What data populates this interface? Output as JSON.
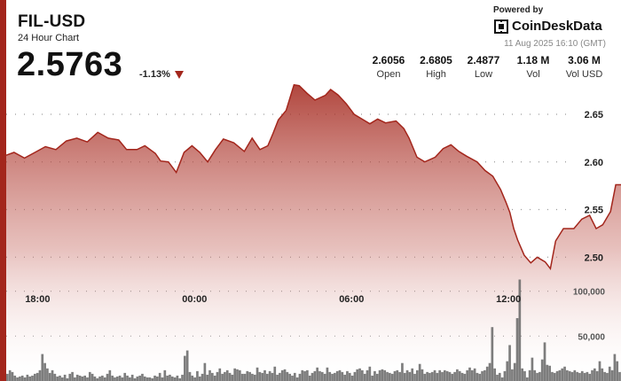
{
  "header": {
    "pair": "FIL-USD",
    "subtitle": "24 Hour Chart",
    "price": "2.5763",
    "change": "-1.13%",
    "change_icon": "down-triangle-icon"
  },
  "brand": {
    "powered_by": "Powered by",
    "name": "CoinDeskData",
    "icon": "coindesk-logo-icon",
    "timestamp": "11 Aug 2025 16:10 (GMT)"
  },
  "stats": [
    {
      "value": "2.6056",
      "label": "Open"
    },
    {
      "value": "2.6805",
      "label": "High"
    },
    {
      "value": "2.4877",
      "label": "Low"
    },
    {
      "value": "1.18 M",
      "label": "Vol"
    },
    {
      "value": "3.06 M",
      "label": "Vol USD"
    }
  ],
  "colors": {
    "accent": "#a3261c",
    "line": "#a3261c",
    "volume": "#666666"
  },
  "chart_data": {
    "type": "area",
    "title": "FIL-USD",
    "xlabel": "",
    "ylabel": "",
    "x_ticks": [
      "18:00",
      "00:00",
      "06:00",
      "12:00"
    ],
    "x_tick_hours": [
      3,
      9,
      15,
      21
    ],
    "y_ticks": [
      2.5,
      2.55,
      2.6,
      2.65
    ],
    "y_tick_labels": [
      "2.50",
      "2.55",
      "2.60",
      "2.65"
    ],
    "ylim": [
      2.37,
      2.77
    ],
    "xlim": [
      1.8,
      25.3
    ],
    "grid": "dotted-horizontal",
    "series": [
      {
        "values": [
          [
            1.8,
            2.607
          ],
          [
            2.1,
            2.61
          ],
          [
            2.5,
            2.604
          ],
          [
            2.9,
            2.61
          ],
          [
            3.3,
            2.616
          ],
          [
            3.7,
            2.613
          ],
          [
            4.1,
            2.622
          ],
          [
            4.5,
            2.625
          ],
          [
            4.9,
            2.621
          ],
          [
            5.3,
            2.631
          ],
          [
            5.7,
            2.625
          ],
          [
            6.1,
            2.623
          ],
          [
            6.4,
            2.613
          ],
          [
            6.8,
            2.613
          ],
          [
            7.1,
            2.617
          ],
          [
            7.5,
            2.609
          ],
          [
            7.7,
            2.601
          ],
          [
            8.0,
            2.6
          ],
          [
            8.3,
            2.589
          ],
          [
            8.6,
            2.61
          ],
          [
            8.9,
            2.617
          ],
          [
            9.2,
            2.61
          ],
          [
            9.5,
            2.6
          ],
          [
            9.8,
            2.613
          ],
          [
            10.1,
            2.624
          ],
          [
            10.5,
            2.62
          ],
          [
            10.9,
            2.611
          ],
          [
            11.2,
            2.625
          ],
          [
            11.5,
            2.613
          ],
          [
            11.8,
            2.617
          ],
          [
            12.0,
            2.63
          ],
          [
            12.2,
            2.644
          ],
          [
            12.5,
            2.654
          ],
          [
            12.8,
            2.681
          ],
          [
            13.0,
            2.68
          ],
          [
            13.3,
            2.672
          ],
          [
            13.6,
            2.665
          ],
          [
            14.0,
            2.67
          ],
          [
            14.2,
            2.676
          ],
          [
            14.5,
            2.67
          ],
          [
            14.8,
            2.661
          ],
          [
            15.1,
            2.65
          ],
          [
            15.4,
            2.645
          ],
          [
            15.7,
            2.64
          ],
          [
            16.0,
            2.645
          ],
          [
            16.3,
            2.641
          ],
          [
            16.7,
            2.643
          ],
          [
            17.0,
            2.635
          ],
          [
            17.2,
            2.625
          ],
          [
            17.5,
            2.605
          ],
          [
            17.8,
            2.6
          ],
          [
            18.2,
            2.605
          ],
          [
            18.5,
            2.614
          ],
          [
            18.8,
            2.618
          ],
          [
            19.1,
            2.611
          ],
          [
            19.4,
            2.606
          ],
          [
            19.8,
            2.6
          ],
          [
            20.1,
            2.591
          ],
          [
            20.4,
            2.585
          ],
          [
            20.7,
            2.571
          ],
          [
            20.9,
            2.558
          ],
          [
            21.05,
            2.547
          ],
          [
            21.2,
            2.53
          ],
          [
            21.35,
            2.518
          ],
          [
            21.6,
            2.502
          ],
          [
            21.85,
            2.494
          ],
          [
            22.1,
            2.5
          ],
          [
            22.4,
            2.495
          ],
          [
            22.6,
            2.488
          ],
          [
            22.8,
            2.517
          ],
          [
            23.1,
            2.53
          ],
          [
            23.5,
            2.53
          ],
          [
            23.8,
            2.54
          ],
          [
            24.1,
            2.544
          ],
          [
            24.35,
            2.53
          ],
          [
            24.6,
            2.534
          ],
          [
            24.9,
            2.548
          ],
          [
            25.1,
            2.576
          ],
          [
            25.3,
            2.576
          ]
        ]
      }
    ],
    "volume": {
      "y_ticks": [
        50000,
        100000
      ],
      "y_tick_labels": [
        "50,000",
        "100,000"
      ],
      "ylim": [
        0,
        148000
      ],
      "values": [
        8000,
        12000,
        10000,
        6000,
        4000,
        5000,
        6000,
        4000,
        7000,
        5000,
        6000,
        8000,
        9000,
        12000,
        30000,
        20000,
        14000,
        9000,
        12000,
        8000,
        5000,
        6000,
        4000,
        7000,
        3000,
        8000,
        10000,
        4000,
        7000,
        6000,
        5000,
        6000,
        4000,
        10000,
        8000,
        5000,
        3000,
        5000,
        6000,
        4000,
        8000,
        12000,
        6000,
        4000,
        5000,
        6000,
        4000,
        9000,
        6000,
        4000,
        7000,
        3000,
        5000,
        6000,
        8000,
        5000,
        4000,
        4000,
        3000,
        6000,
        5000,
        9000,
        4000,
        12000,
        6000,
        7000,
        5000,
        4000,
        6000,
        3000,
        7000,
        28000,
        34000,
        10000,
        6000,
        4000,
        11000,
        5000,
        8000,
        20000,
        7000,
        12000,
        9000,
        6000,
        10000,
        14000,
        8000,
        10000,
        12000,
        9000,
        7000,
        14000,
        13000,
        12000,
        8000,
        8000,
        11000,
        10000,
        8000,
        7000,
        15000,
        10000,
        9000,
        12000,
        8000,
        11000,
        9000,
        16000,
        7000,
        9000,
        12000,
        13000,
        10000,
        8000,
        6000,
        9000,
        4000,
        8000,
        12000,
        11000,
        12000,
        6000,
        9000,
        11000,
        15000,
        11000,
        10000,
        8000,
        15000,
        10000,
        8000,
        9000,
        11000,
        12000,
        10000,
        7000,
        11000,
        9000,
        6000,
        10000,
        13000,
        14000,
        12000,
        8000,
        12000,
        16000,
        6000,
        11000,
        8000,
        12000,
        13000,
        12000,
        10000,
        9000,
        8000,
        11000,
        12000,
        10000,
        20000,
        9000,
        12000,
        10000,
        14000,
        8000,
        12000,
        19000,
        13000,
        8000,
        10000,
        9000,
        10000,
        12000,
        9000,
        12000,
        10000,
        12000,
        11000,
        10000,
        8000,
        10000,
        13000,
        11000,
        9000,
        8000,
        12000,
        15000,
        12000,
        14000,
        9000,
        8000,
        11000,
        12000,
        16000,
        20000,
        60000,
        14000,
        7000,
        9000,
        4000,
        11000,
        22000,
        40000,
        13000,
        20000,
        70000,
        113000,
        14000,
        11000,
        4000,
        12000,
        26000,
        12000,
        9000,
        10000,
        24000,
        43000,
        18000,
        17000,
        10000,
        9000,
        11000,
        12000,
        14000,
        16000,
        12000,
        11000,
        10000,
        12000,
        10000,
        9000,
        11000,
        9000,
        10000,
        8000,
        12000,
        14000,
        11000,
        22000,
        14000,
        10000,
        9000,
        16000,
        12000,
        30000,
        22000,
        10000
      ]
    }
  }
}
